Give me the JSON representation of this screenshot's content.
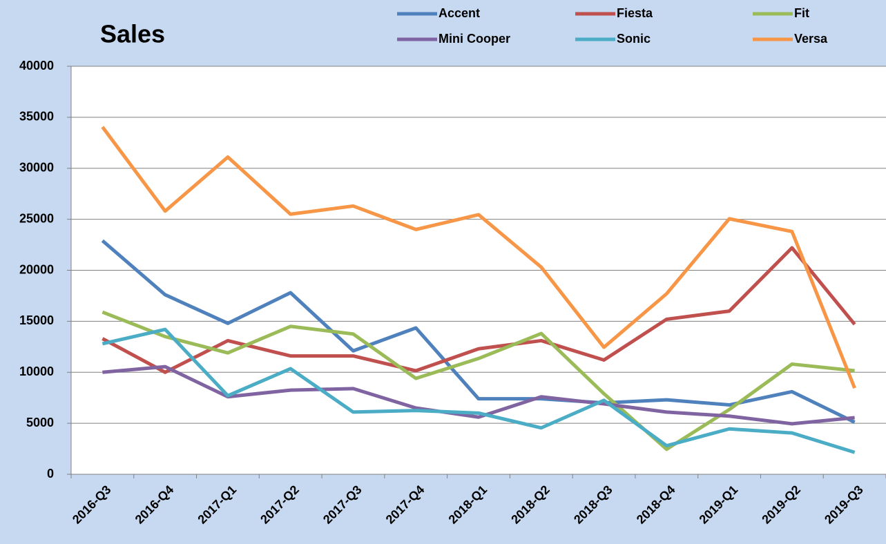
{
  "chart_data": {
    "type": "line",
    "title": "Sales",
    "categories": [
      "2016-Q3",
      "2016-Q4",
      "2017-Q1",
      "2017-Q2",
      "2017-Q3",
      "2017-Q4",
      "2018-Q1",
      "2018-Q2",
      "2018-Q3",
      "2018-Q4",
      "2019-Q1",
      "2019-Q2",
      "2019-Q3"
    ],
    "series": [
      {
        "name": "Accent",
        "color": "#4f81bd",
        "values": [
          22900,
          17600,
          14800,
          17800,
          12100,
          14350,
          7400,
          7400,
          7000,
          7300,
          6800,
          8100,
          5100
        ]
      },
      {
        "name": "Fiesta",
        "color": "#c0504d",
        "values": [
          13300,
          10000,
          13100,
          11600,
          11600,
          10150,
          12300,
          13100,
          11200,
          15200,
          16000,
          22200,
          14700
        ]
      },
      {
        "name": "Fit",
        "color": "#9bbb59",
        "values": [
          15900,
          13500,
          11900,
          14500,
          13750,
          9400,
          11350,
          13800,
          7900,
          2450,
          6350,
          10800,
          10150
        ]
      },
      {
        "name": "Mini Cooper",
        "color": "#8064a2",
        "values": [
          10000,
          10550,
          7600,
          8250,
          8400,
          6500,
          5600,
          7600,
          6900,
          6100,
          5700,
          4950,
          5550
        ]
      },
      {
        "name": "Sonic",
        "color": "#4bacc6",
        "values": [
          12800,
          14200,
          7700,
          10350,
          6100,
          6250,
          6000,
          4550,
          7250,
          2800,
          4450,
          4050,
          2150
        ]
      },
      {
        "name": "Versa",
        "color": "#f79646",
        "values": [
          34050,
          25800,
          31100,
          25500,
          26300,
          24000,
          25450,
          20300,
          12450,
          17700,
          25050,
          23800,
          8450
        ]
      }
    ],
    "ylim": [
      0,
      40000
    ],
    "yticks": [
      0,
      5000,
      10000,
      15000,
      20000,
      25000,
      30000,
      35000,
      40000
    ],
    "grid": true
  }
}
